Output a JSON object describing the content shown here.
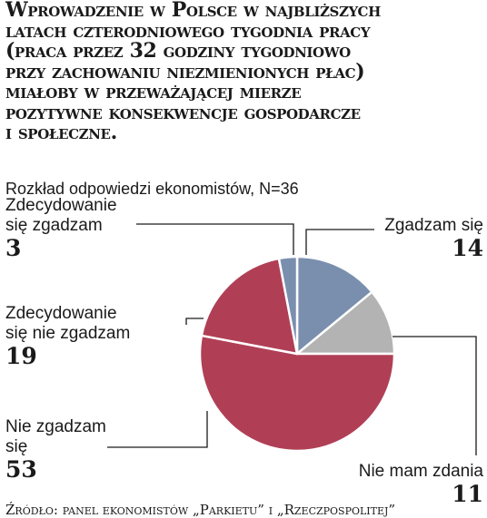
{
  "title": "Wprowadzenie w Polsce w najbliższych latach czterodniowego tygodnia pracy (praca przez 32 godziny tygodniowo przy zachowaniu niezmienionych płac) miałoby w przeważającej mierze pozytywne konsekwencje gospodarcze i społeczne.",
  "subtitle": "Rozkład odpowiedzi ekonomistów, N=36",
  "source": "Źródło: panel ekonomistów „Parkietu” i „Rzeczpospolitej”",
  "chart_data": {
    "type": "pie",
    "title": "Rozkład odpowiedzi ekonomistów, N=36",
    "unit": "%",
    "slices": [
      {
        "label": "Zgadzam się",
        "value": 14,
        "color": "#7a8fae"
      },
      {
        "label": "Nie mam zdania",
        "value": 11,
        "color": "#b3b3b3"
      },
      {
        "label": "Nie zgadzam się",
        "value": 53,
        "color": "#b03f55"
      },
      {
        "label": "Zdecydowanie się nie zgadzam",
        "value": 19,
        "color": "#b03f55"
      },
      {
        "label": "Zdecydowanie się zgadzam",
        "value": 3,
        "color": "#7a8fae"
      }
    ]
  }
}
